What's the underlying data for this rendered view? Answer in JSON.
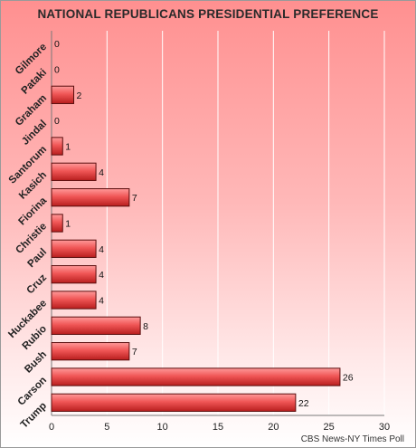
{
  "chart_data": {
    "type": "bar",
    "orientation": "horizontal",
    "title": "NATIONAL REPUBLICANS PRESIDENTIAL PREFERENCE",
    "categories": [
      "Gilmore",
      "Pataki",
      "Graham",
      "Jindal",
      "Santorum",
      "Kasich",
      "Fiorina",
      "Christie",
      "Paul",
      "Cruz",
      "Huckabee",
      "Rubio",
      "Bush",
      "Carson",
      "Trump"
    ],
    "values": [
      0,
      0,
      2,
      0,
      1,
      4,
      7,
      1,
      4,
      4,
      4,
      8,
      7,
      26,
      22
    ],
    "xlim": [
      0,
      30
    ],
    "xticks": [
      0,
      5,
      10,
      15,
      20,
      25,
      30
    ],
    "grid": true,
    "bar_color": "#e84848",
    "source": "CBS News-NY Times Poll"
  }
}
